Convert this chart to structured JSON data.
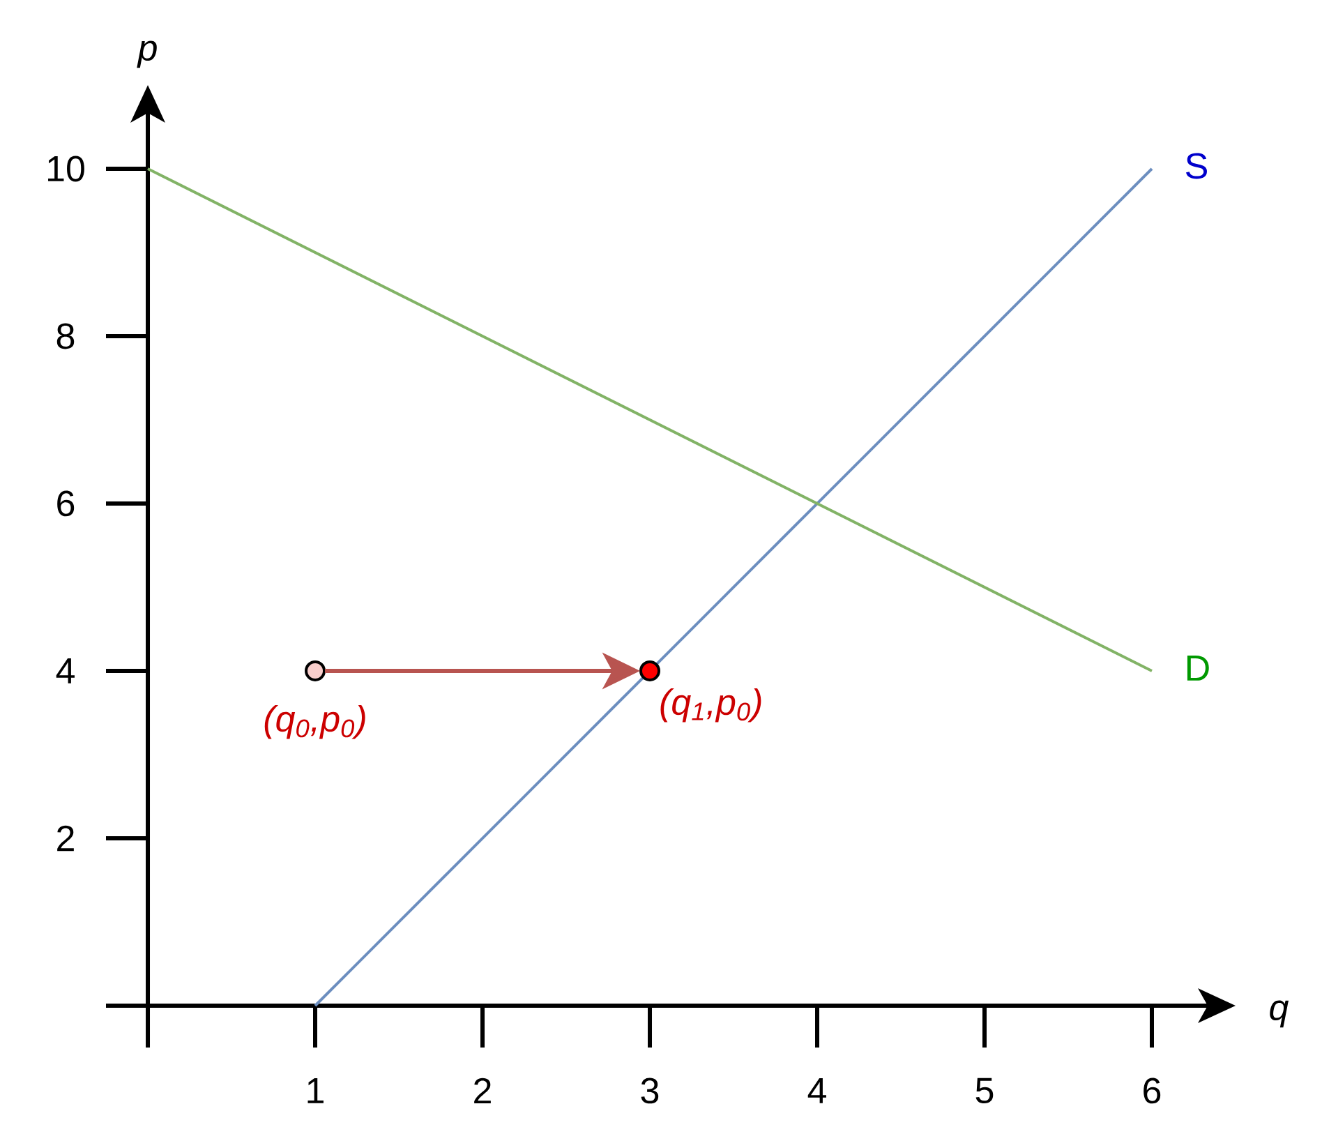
{
  "chart_data": {
    "type": "line",
    "xlabel": "q",
    "ylabel": "p",
    "xlim": [
      0,
      6.45
    ],
    "ylim": [
      0,
      10.9
    ],
    "xticks": [
      {
        "value": 0,
        "label": null
      },
      1,
      2,
      3,
      4,
      5,
      6
    ],
    "yticks": [
      {
        "value": 0,
        "label": null
      },
      2,
      4,
      6,
      8,
      10
    ],
    "series": [
      {
        "name": "S",
        "color": "#6c8ebf",
        "x": [
          1,
          6
        ],
        "values": [
          0,
          10
        ]
      },
      {
        "name": "D",
        "color": "#82b366",
        "x": [
          0,
          6
        ],
        "values": [
          10,
          4
        ]
      },
      {
        "type": "scatter",
        "marker": "circle",
        "color": "#f8cecc",
        "x": [
          1
        ],
        "values": [
          4
        ]
      },
      {
        "type": "scatter",
        "marker": "circle",
        "color": "#ff0000",
        "x": [
          3
        ],
        "values": [
          4
        ]
      }
    ],
    "annotations": [
      {
        "text": "(q$_{0}$,p$_{0}$)",
        "x": 1,
        "y": 4
      },
      {
        "text": "(q$_{1}$,p$_{0}$)",
        "x": 3,
        "y": 4
      }
    ]
  }
}
